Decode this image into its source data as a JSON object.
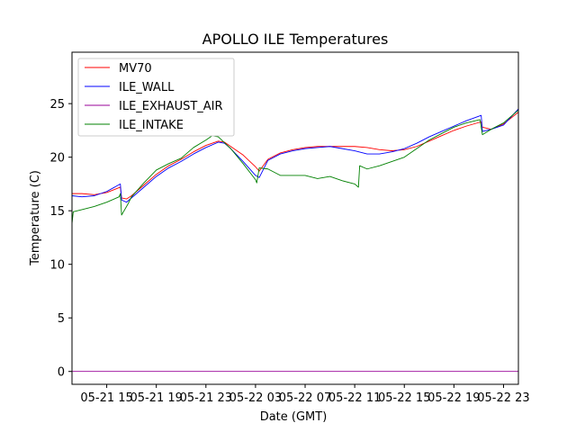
{
  "chart_data": {
    "type": "line",
    "title": "APOLLO ILE Temperatures",
    "xlabel": "Date (GMT)",
    "ylabel": "Temperature (C)",
    "xlim": [
      12.2,
      48.2
    ],
    "ylim": [
      -1.2,
      29.8
    ],
    "x_unit": "hours since 2021-05-21 00:00 GMT",
    "xticks": [
      {
        "value": 15,
        "label": "05-21 15"
      },
      {
        "value": 19,
        "label": "05-21 19"
      },
      {
        "value": 23,
        "label": "05-21 23"
      },
      {
        "value": 27,
        "label": "05-22 03"
      },
      {
        "value": 31,
        "label": "05-22 07"
      },
      {
        "value": 35,
        "label": "05-22 11"
      },
      {
        "value": 39,
        "label": "05-22 15"
      },
      {
        "value": 43,
        "label": "05-22 19"
      },
      {
        "value": 47,
        "label": "05-22 23"
      }
    ],
    "yticks": [
      0,
      5,
      10,
      15,
      20,
      25
    ],
    "grid": false,
    "legend_position": "top-left",
    "series": [
      {
        "name": "MV70",
        "color": "#ff0000",
        "x": [
          12.2,
          13.0,
          14.0,
          15.0,
          16.1,
          16.2,
          16.6,
          17.0,
          18.0,
          19.0,
          20.0,
          21.0,
          22.0,
          23.0,
          24.0,
          24.5,
          25.0,
          26.0,
          27.0,
          27.3,
          28.0,
          29.0,
          30.0,
          31.0,
          32.0,
          33.0,
          34.0,
          35.0,
          36.0,
          37.0,
          38.0,
          39.0,
          40.0,
          41.0,
          42.0,
          43.0,
          44.0,
          45.2,
          45.3,
          46.0,
          47.0,
          48.2
        ],
        "values": [
          16.6,
          16.6,
          16.5,
          16.7,
          17.2,
          16.2,
          16.1,
          16.4,
          17.4,
          18.4,
          19.2,
          19.8,
          20.5,
          21.1,
          21.5,
          21.4,
          21.0,
          20.2,
          19.1,
          18.7,
          19.8,
          20.4,
          20.7,
          20.9,
          21.0,
          21.0,
          21.0,
          21.0,
          20.9,
          20.7,
          20.6,
          20.7,
          21.0,
          21.5,
          22.0,
          22.5,
          22.9,
          23.3,
          22.8,
          22.6,
          23.1,
          24.2
        ]
      },
      {
        "name": "ILE_WALL",
        "color": "#0000ff",
        "x": [
          12.2,
          13.0,
          14.0,
          15.0,
          16.1,
          16.2,
          16.6,
          17.0,
          18.0,
          19.0,
          20.0,
          21.0,
          22.0,
          23.0,
          24.0,
          24.5,
          25.0,
          26.0,
          27.0,
          27.3,
          28.0,
          29.0,
          30.0,
          31.0,
          32.0,
          33.0,
          34.0,
          35.0,
          36.0,
          37.0,
          38.0,
          39.0,
          40.0,
          41.0,
          42.0,
          43.0,
          44.0,
          45.2,
          45.3,
          46.0,
          47.0,
          48.2
        ],
        "values": [
          16.4,
          16.3,
          16.4,
          16.8,
          17.5,
          16.0,
          15.8,
          16.2,
          17.2,
          18.2,
          19.0,
          19.6,
          20.3,
          20.9,
          21.4,
          21.3,
          20.8,
          19.6,
          18.3,
          18.1,
          19.7,
          20.3,
          20.6,
          20.8,
          20.9,
          21.0,
          20.8,
          20.6,
          20.3,
          20.3,
          20.5,
          20.8,
          21.3,
          21.9,
          22.4,
          22.9,
          23.4,
          23.9,
          22.4,
          22.6,
          23.0,
          24.5
        ]
      },
      {
        "name": "ILE_EXHAUST_AIR",
        "color": "#990099",
        "x": [
          12.2,
          48.2
        ],
        "values": [
          0.0,
          0.0
        ]
      },
      {
        "name": "ILE_INTAKE",
        "color": "#008000",
        "x": [
          12.2,
          12.3,
          13.0,
          14.0,
          15.0,
          16.0,
          16.1,
          16.2,
          16.7,
          17.0,
          18.0,
          19.0,
          20.0,
          21.0,
          22.0,
          23.0,
          23.5,
          24.0,
          25.0,
          26.0,
          27.0,
          27.1,
          27.3,
          28.0,
          29.0,
          30.0,
          31.0,
          32.0,
          33.0,
          34.0,
          35.0,
          35.3,
          35.4,
          36.0,
          37.0,
          38.0,
          39.0,
          40.0,
          41.0,
          42.0,
          43.0,
          44.0,
          45.1,
          45.3,
          46.0,
          47.0,
          48.2
        ],
        "values": [
          13.8,
          14.9,
          15.1,
          15.4,
          15.8,
          16.3,
          16.6,
          14.6,
          15.6,
          16.3,
          17.6,
          18.8,
          19.4,
          19.9,
          20.9,
          21.6,
          22.0,
          21.9,
          20.8,
          19.4,
          17.9,
          17.6,
          19.0,
          18.9,
          18.3,
          18.3,
          18.3,
          18.0,
          18.2,
          17.8,
          17.5,
          17.2,
          19.2,
          18.9,
          19.2,
          19.6,
          20.0,
          20.8,
          21.6,
          22.2,
          22.8,
          23.2,
          23.5,
          22.1,
          22.6,
          23.2,
          24.4
        ]
      }
    ]
  }
}
